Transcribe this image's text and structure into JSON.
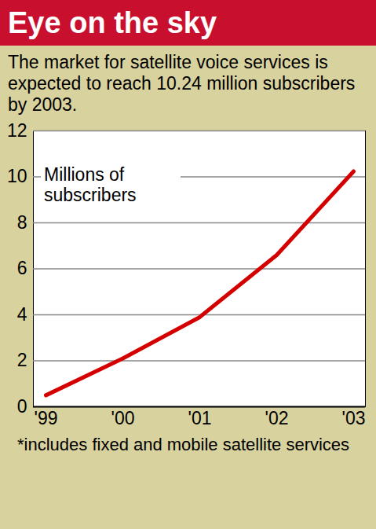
{
  "chart_data": {
    "type": "line",
    "title": "Eye on the sky",
    "subtitle": "The market for satellite voice services is expected to reach 10.24 million subscribers by 2003.",
    "annotations": [
      "Millions of subscribers"
    ],
    "footnote": "*includes fixed and mobile satellite services",
    "categories": [
      "'99",
      "'00",
      "'01",
      "'02",
      "'03"
    ],
    "values": [
      0.5,
      2.1,
      3.9,
      6.6,
      10.24
    ],
    "color": "#d40000",
    "ylim": [
      0,
      12
    ],
    "yticks": [
      0,
      2,
      4,
      6,
      8,
      10,
      12
    ],
    "grid": true
  }
}
